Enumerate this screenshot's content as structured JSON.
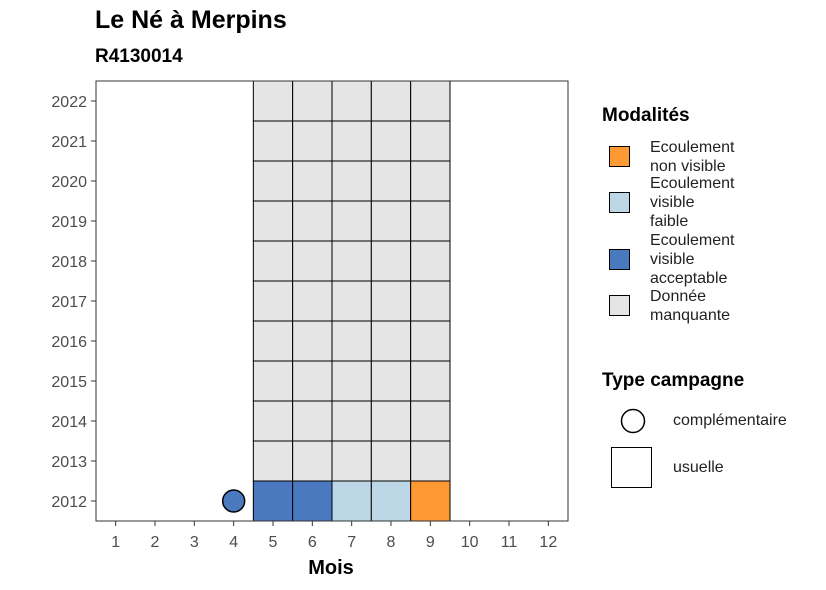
{
  "title": "Le Né à Merpins",
  "subtitle": "R4130014",
  "chart_data": {
    "type": "heatmap",
    "xlabel": "Mois",
    "ylabel": "",
    "x_ticks": [
      1,
      2,
      3,
      4,
      5,
      6,
      7,
      8,
      9,
      10,
      11,
      12
    ],
    "y_ticks": [
      2012,
      2013,
      2014,
      2015,
      2016,
      2017,
      2018,
      2019,
      2020,
      2021,
      2022
    ],
    "xlim": [
      0.5,
      12.5
    ],
    "ylim": [
      2011.5,
      2022.5
    ],
    "grid": false,
    "legend_position": "right",
    "modalites": [
      {
        "key": "non_visible",
        "label": "Ecoulement\nnon visible",
        "color": "#FF9933"
      },
      {
        "key": "visible_faible",
        "label": "Ecoulement\nvisible\nfaible",
        "color": "#BDD7E7"
      },
      {
        "key": "visible_acceptable",
        "label": "Ecoulement\nvisible\nacceptable",
        "color": "#4A79BF"
      },
      {
        "key": "manquante",
        "label": "Donnée\nmanquante",
        "color": "#E5E5E5"
      }
    ],
    "cells": [
      {
        "month": 5,
        "year": 2012,
        "modalite": "visible_acceptable",
        "type": "usuelle"
      },
      {
        "month": 6,
        "year": 2012,
        "modalite": "visible_acceptable",
        "type": "usuelle"
      },
      {
        "month": 7,
        "year": 2012,
        "modalite": "visible_faible",
        "type": "usuelle"
      },
      {
        "month": 8,
        "year": 2012,
        "modalite": "visible_faible",
        "type": "usuelle"
      },
      {
        "month": 9,
        "year": 2012,
        "modalite": "non_visible",
        "type": "usuelle"
      },
      {
        "month": 4,
        "year": 2012,
        "modalite": "visible_acceptable",
        "type": "complémentaire"
      }
    ],
    "missing_block": {
      "months": [
        5,
        6,
        7,
        8,
        9
      ],
      "years": [
        2013,
        2014,
        2015,
        2016,
        2017,
        2018,
        2019,
        2020,
        2021,
        2022
      ],
      "modalite": "manquante",
      "type": "usuelle"
    }
  },
  "legend": {
    "modalites_title": "Modalités",
    "type_title": "Type campagne",
    "types": [
      {
        "key": "complementaire",
        "label": "complémentaire",
        "shape": "circle"
      },
      {
        "key": "usuelle",
        "label": "usuelle",
        "shape": "square"
      }
    ]
  }
}
